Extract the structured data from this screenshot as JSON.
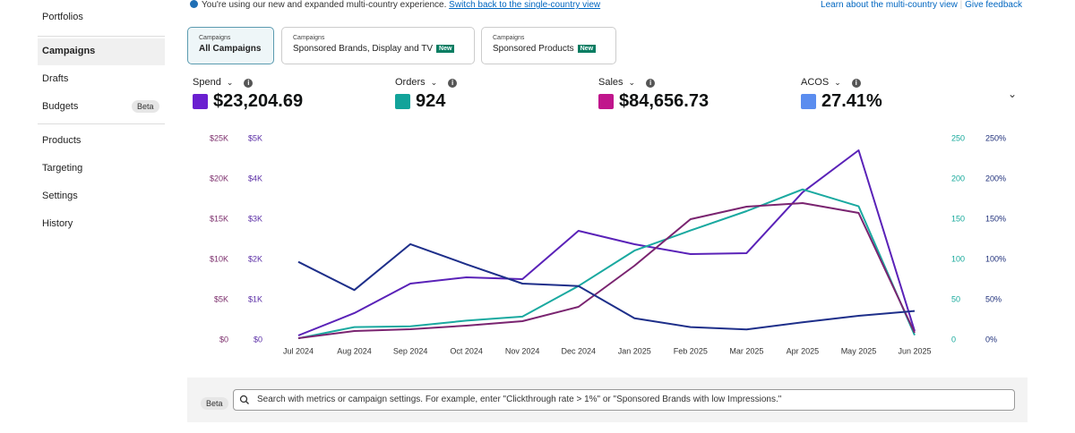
{
  "sidebar": {
    "items": [
      "Portfolios",
      "Campaigns",
      "Drafts",
      "Budgets",
      "Products",
      "Targeting",
      "Settings",
      "History"
    ],
    "selected": 1,
    "badge_item": 3,
    "badge": "Beta"
  },
  "banner": {
    "message": "You're using our new and expanded multi-country experience.",
    "link": "Switch back to the single-country view",
    "right_links": [
      "Learn about the multi-country view",
      "Give feedback"
    ]
  },
  "tabs": [
    {
      "kicker": "Campaigns",
      "label": "All Campaigns",
      "selected": true
    },
    {
      "kicker": "Campaigns",
      "label": "Sponsored Brands, Display and TV",
      "badge": "New"
    },
    {
      "kicker": "Campaigns",
      "label": "Sponsored Products",
      "badge": "New"
    }
  ],
  "chart_data": {
    "type": "line",
    "categories": [
      "Jul 2024",
      "Aug 2024",
      "Sep 2024",
      "Oct 2024",
      "Nov 2024",
      "Dec 2024",
      "Jan 2025",
      "Feb 2025",
      "Mar 2025",
      "Apr 2025",
      "May 2025",
      "Jun 2025"
    ],
    "axes": [
      {
        "side": "left",
        "color": "#7b2d6b",
        "lim": [
          0,
          25000
        ],
        "ticks": [
          {
            "value": 0,
            "label": "$0"
          },
          {
            "value": 5000,
            "label": "$5K"
          },
          {
            "value": 10000,
            "label": "$10K"
          },
          {
            "value": 15000,
            "label": "$15K"
          },
          {
            "value": 20000,
            "label": "$20K"
          },
          {
            "value": 25000,
            "label": "$25K"
          }
        ]
      },
      {
        "side": "left",
        "color": "#5b2ea6",
        "lim": [
          0,
          5000
        ],
        "ticks": [
          {
            "value": 0,
            "label": "$0"
          },
          {
            "value": 1000,
            "label": "$1K"
          },
          {
            "value": 2000,
            "label": "$2K"
          },
          {
            "value": 3000,
            "label": "$3K"
          },
          {
            "value": 4000,
            "label": "$4K"
          },
          {
            "value": 5000,
            "label": "$5K"
          }
        ]
      },
      {
        "side": "right",
        "color": "#14a89a",
        "lim": [
          0,
          250
        ],
        "ticks": [
          0,
          50,
          100,
          150,
          200,
          250
        ]
      },
      {
        "side": "right",
        "color": "#1e2f7a",
        "lim": [
          0,
          250
        ],
        "ticks": [
          {
            "value": 0,
            "label": "0%"
          },
          {
            "value": 50,
            "label": "50%"
          },
          {
            "value": 100,
            "label": "100%"
          },
          {
            "value": 150,
            "label": "150%"
          },
          {
            "value": 200,
            "label": "200%"
          },
          {
            "value": 250,
            "label": "250%"
          }
        ]
      }
    ],
    "series": [
      {
        "name": "Spend",
        "total": "$23,204.69",
        "swatch": "#6a1fd0",
        "color": "#5a22b8",
        "axis": 1,
        "values": [
          111,
          667,
          1400,
          1556,
          1511,
          2711,
          2378,
          2133,
          2156,
          3667,
          4711,
          222
        ]
      },
      {
        "name": "Orders",
        "total": "924",
        "swatch": "#12a39a",
        "color": "#1aa9a0",
        "axis": 2,
        "values": [
          2,
          16,
          17,
          24,
          29,
          67,
          111,
          136,
          160,
          187,
          166,
          6
        ]
      },
      {
        "name": "Sales",
        "total": "$84,656.73",
        "swatch": "#c0168c",
        "color": "#7a2470",
        "axis": 0,
        "values": [
          222,
          1111,
          1333,
          1778,
          2333,
          4111,
          9222,
          15000,
          16556,
          17000,
          15778,
          889
        ]
      },
      {
        "name": "ACOS",
        "total": "27.41%",
        "swatch": "#5b8def",
        "color": "#1e2f8a",
        "axis": 3,
        "values": [
          97,
          62,
          119,
          94,
          70,
          67,
          27,
          16,
          13,
          22,
          30,
          36
        ]
      }
    ]
  },
  "search": {
    "badge": "Beta",
    "placeholder": "Search with metrics or campaign settings. For example, enter \"Clickthrough rate > 1%\" or \"Sponsored Brands with low Impressions.\""
  }
}
